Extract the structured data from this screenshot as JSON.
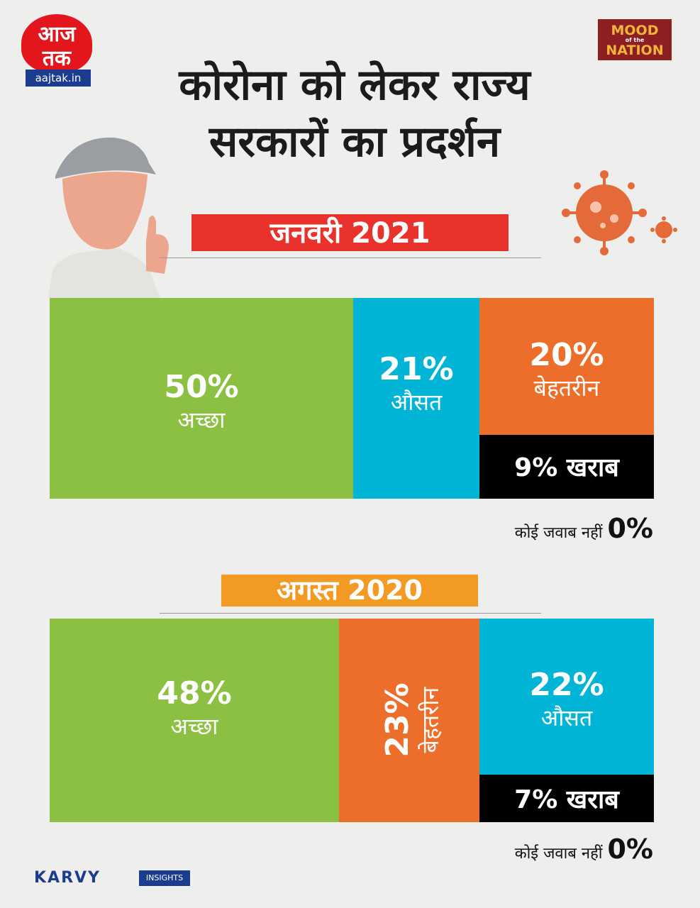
{
  "brand": {
    "logo_text": "आज तक",
    "logo_url": "aajtak.in",
    "badge_line1": "MOOD",
    "badge_small": "of the",
    "badge_line2": "NATION",
    "source": "KARVY",
    "source_tag": "INSIGHTS"
  },
  "colors": {
    "good": "#8cc043",
    "average": "#00b4d5",
    "excellent": "#ed6e2a",
    "bad": "#000000",
    "header1": "#e8322b",
    "header2": "#f39a24"
  },
  "chart_data": [
    {
      "type": "bar",
      "title": "जनवरी 2021",
      "categories": [
        "अच्छा",
        "औसत",
        "बेहतरीन",
        "खराब",
        "कोई जवाब नहीं"
      ],
      "values": [
        50,
        21,
        20,
        9,
        0
      ],
      "labels": {
        "good": {
          "pct": "50%",
          "cat": "अच्छा"
        },
        "average": {
          "pct": "21%",
          "cat": "औसत"
        },
        "excellent": {
          "pct": "20%",
          "cat": "बेहतरीन"
        },
        "bad": "9% खराब",
        "no_response_label": "कोई जवाब नहीं",
        "no_response_value": "0%"
      }
    },
    {
      "type": "bar",
      "title": "अगस्त 2020",
      "categories": [
        "अच्छा",
        "बेहतरीन",
        "औसत",
        "खराब",
        "कोई जवाब नहीं"
      ],
      "values": [
        48,
        23,
        22,
        7,
        0
      ],
      "labels": {
        "good": {
          "pct": "48%",
          "cat": "अच्छा"
        },
        "excellent": {
          "pct": "23%",
          "cat": "बेहतरीन"
        },
        "average": {
          "pct": "22%",
          "cat": "औसत"
        },
        "bad": "7% खराब",
        "no_response_label": "कोई जवाब नहीं",
        "no_response_value": "0%"
      }
    }
  ],
  "title_line1": "कोरोना को लेकर राज्य",
  "title_line2": "सरकारों का प्रदर्शन"
}
